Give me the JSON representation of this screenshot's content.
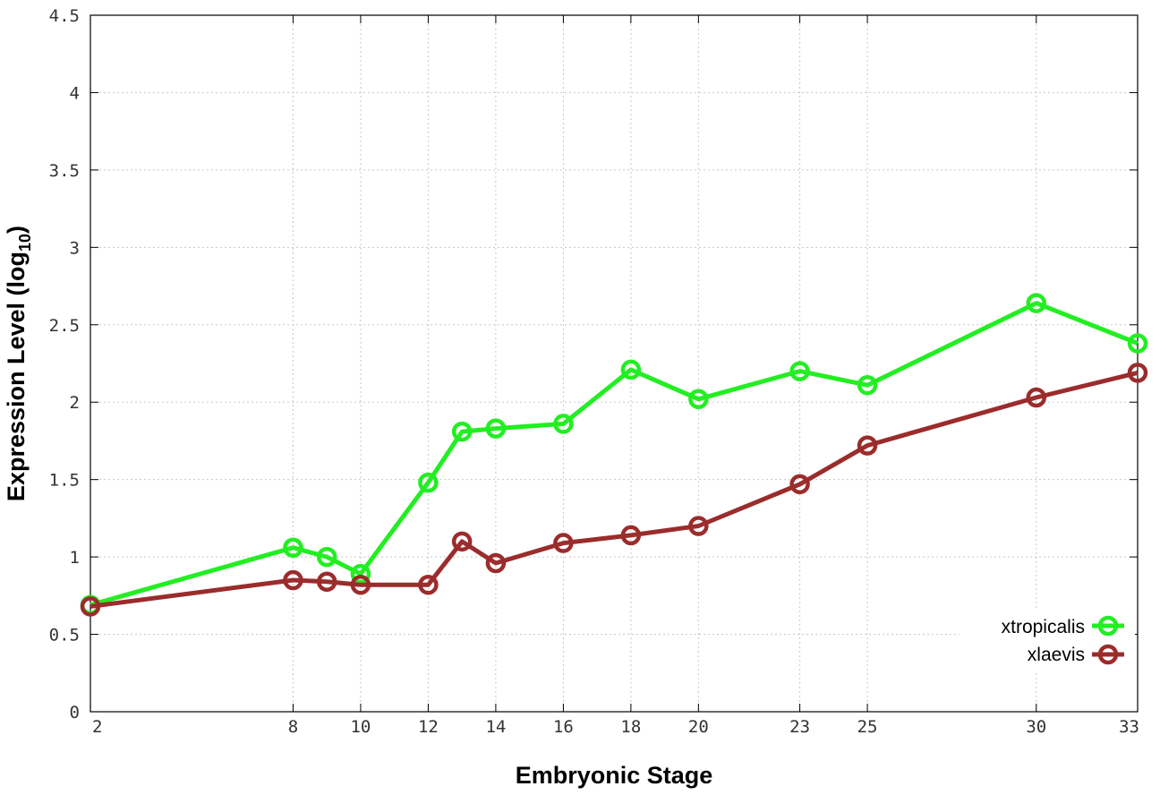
{
  "chart_data": {
    "type": "line",
    "xlabel": "Embryonic Stage",
    "ylabel": "Expression Level (log",
    "ylabel_subscript": "10",
    "ylabel_suffix": ")",
    "xlim": [
      2,
      33
    ],
    "ylim": [
      0,
      4.5
    ],
    "x_ticks": [
      "2",
      "8",
      "10",
      "12",
      "14",
      "16",
      "18",
      "20",
      "23",
      "25",
      "30",
      "33"
    ],
    "x_tick_values": [
      2,
      8,
      10,
      12,
      14,
      16,
      18,
      20,
      23,
      25,
      30,
      33
    ],
    "y_ticks": [
      "0",
      "0.5",
      "1",
      "1.5",
      "2",
      "2.5",
      "3",
      "3.5",
      "4",
      "4.5"
    ],
    "y_tick_values": [
      0,
      0.5,
      1,
      1.5,
      2,
      2.5,
      3,
      3.5,
      4,
      4.5
    ],
    "grid": true,
    "legend_position": "bottom-right",
    "series": [
      {
        "name": "xtropicalis",
        "color": "#22ee22",
        "x": [
          2,
          8,
          9,
          10,
          12,
          13,
          14,
          16,
          18,
          20,
          23,
          25,
          30,
          33
        ],
        "y": [
          0.69,
          1.06,
          1.0,
          0.89,
          1.48,
          1.81,
          1.83,
          1.86,
          2.21,
          2.02,
          2.2,
          2.11,
          2.64,
          2.38
        ]
      },
      {
        "name": "xlaevis",
        "color": "#9b2c2c",
        "x": [
          2,
          8,
          9,
          10,
          12,
          13,
          14,
          16,
          18,
          20,
          23,
          25,
          30,
          33
        ],
        "y": [
          0.68,
          0.85,
          0.84,
          0.82,
          0.82,
          1.1,
          0.96,
          1.09,
          1.14,
          1.2,
          1.47,
          1.72,
          2.03,
          2.19
        ]
      }
    ]
  }
}
